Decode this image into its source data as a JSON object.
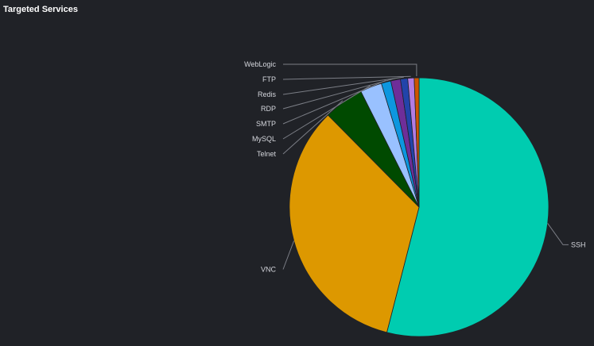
{
  "panel": {
    "title": "Targeted Services"
  },
  "chart_data": {
    "type": "pie",
    "title": "Targeted Services",
    "legend": "none",
    "start": "top",
    "direction": "clockwise",
    "slices": [
      {
        "label": "SSH",
        "value": 54.0,
        "color": "#00ccb0"
      },
      {
        "label": "VNC",
        "value": 33.6,
        "color": "#dd9800"
      },
      {
        "label": "Telnet",
        "value": 5.0,
        "color": "#004a00"
      },
      {
        "label": "MySQL",
        "value": 2.7,
        "color": "#99c1ff"
      },
      {
        "label": "SMTP",
        "value": 1.2,
        "color": "#0d97df"
      },
      {
        "label": "RDP",
        "value": 1.2,
        "color": "#6e2e99"
      },
      {
        "label": "Redis",
        "value": 0.9,
        "color": "#2244aa"
      },
      {
        "label": "FTP",
        "value": 0.8,
        "color": "#b27ce3"
      },
      {
        "label": "WebLogic",
        "value": 0.6,
        "color": "#cc5500"
      }
    ]
  }
}
